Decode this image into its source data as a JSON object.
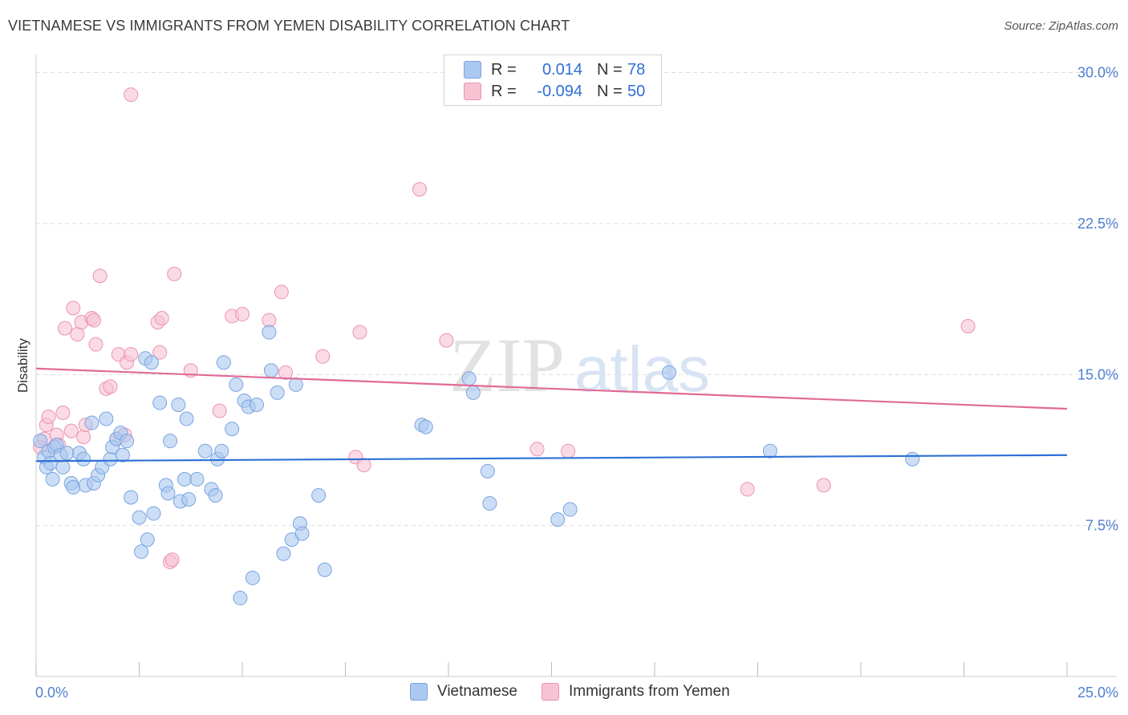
{
  "header": {
    "title": "VIETNAMESE VS IMMIGRANTS FROM YEMEN DISABILITY CORRELATION CHART",
    "source": "Source: ZipAtlas.com"
  },
  "legend": {
    "rows": [
      {
        "r_label": "R =",
        "r_value": "0.014",
        "n_label": "N =",
        "n_value": "78",
        "color": "#aac8f0",
        "border": "#7aa4e0"
      },
      {
        "r_label": "R =",
        "r_value": "-0.094",
        "n_label": "N =",
        "n_value": "50",
        "color": "#f7c3d3",
        "border": "#eb93b0"
      }
    ]
  },
  "bottom_legend": {
    "items": [
      {
        "label": "Vietnamese",
        "color": "#aac8f0",
        "border": "#7aa4e0"
      },
      {
        "label": "Immigrants from Yemen",
        "color": "#f7c3d3",
        "border": "#eb93b0"
      }
    ]
  },
  "watermark": {
    "zip": "ZIP",
    "atlas": "atlas"
  },
  "chart_data": {
    "type": "scatter",
    "title": "VIETNAMESE VS IMMIGRANTS FROM YEMEN DISABILITY CORRELATION CHART",
    "xlabel": "",
    "ylabel": "Disability",
    "xlim": [
      0,
      25
    ],
    "ylim": [
      0,
      30.5
    ],
    "x_tick_labels": [
      "0.0%",
      "25.0%"
    ],
    "y_ticks": [
      7.5,
      15.0,
      22.5,
      30.0
    ],
    "y_tick_labels": [
      "7.5%",
      "15.0%",
      "22.5%",
      "30.0%"
    ],
    "grid": true,
    "series": [
      {
        "name": "Vietnamese",
        "color": "#7aa4e0",
        "fill": "#aac8f0",
        "line_color": "#2e6fd6",
        "trend": {
          "x": [
            0,
            25
          ],
          "y": [
            10.7,
            11.0
          ]
        },
        "points": [
          [
            0.1,
            11.7
          ],
          [
            0.2,
            10.9
          ],
          [
            0.25,
            10.4
          ],
          [
            0.3,
            11.2
          ],
          [
            0.35,
            10.6
          ],
          [
            0.4,
            9.8
          ],
          [
            0.45,
            11.4
          ],
          [
            0.5,
            11.5
          ],
          [
            0.6,
            11.0
          ],
          [
            0.65,
            10.4
          ],
          [
            0.75,
            11.1
          ],
          [
            0.85,
            9.6
          ],
          [
            0.9,
            9.4
          ],
          [
            1.05,
            11.1
          ],
          [
            1.15,
            10.8
          ],
          [
            1.2,
            9.5
          ],
          [
            1.35,
            12.6
          ],
          [
            1.4,
            9.6
          ],
          [
            1.5,
            10.0
          ],
          [
            1.6,
            10.4
          ],
          [
            1.7,
            12.8
          ],
          [
            1.8,
            10.8
          ],
          [
            1.85,
            11.4
          ],
          [
            1.95,
            11.8
          ],
          [
            2.05,
            12.1
          ],
          [
            2.1,
            11.0
          ],
          [
            2.2,
            11.7
          ],
          [
            2.3,
            8.9
          ],
          [
            2.5,
            7.9
          ],
          [
            2.55,
            6.2
          ],
          [
            2.65,
            15.8
          ],
          [
            2.7,
            6.8
          ],
          [
            2.8,
            15.6
          ],
          [
            2.85,
            8.1
          ],
          [
            3.0,
            13.6
          ],
          [
            3.15,
            9.5
          ],
          [
            3.2,
            9.1
          ],
          [
            3.25,
            11.7
          ],
          [
            3.45,
            13.5
          ],
          [
            3.5,
            8.7
          ],
          [
            3.6,
            9.8
          ],
          [
            3.65,
            12.8
          ],
          [
            3.7,
            8.8
          ],
          [
            3.9,
            9.8
          ],
          [
            4.1,
            11.2
          ],
          [
            4.25,
            9.3
          ],
          [
            4.35,
            9.0
          ],
          [
            4.4,
            10.8
          ],
          [
            4.5,
            11.2
          ],
          [
            4.55,
            15.6
          ],
          [
            4.75,
            12.3
          ],
          [
            4.85,
            14.5
          ],
          [
            5.05,
            13.7
          ],
          [
            5.15,
            13.4
          ],
          [
            5.25,
            4.9
          ],
          [
            5.35,
            13.5
          ],
          [
            4.95,
            3.9
          ],
          [
            5.65,
            17.1
          ],
          [
            5.7,
            15.2
          ],
          [
            5.85,
            14.1
          ],
          [
            6.0,
            6.1
          ],
          [
            6.2,
            6.8
          ],
          [
            6.3,
            14.5
          ],
          [
            6.4,
            7.6
          ],
          [
            6.45,
            7.1
          ],
          [
            6.85,
            9.0
          ],
          [
            7.0,
            5.3
          ],
          [
            9.35,
            12.5
          ],
          [
            9.45,
            12.4
          ],
          [
            10.5,
            14.8
          ],
          [
            10.6,
            14.1
          ],
          [
            10.95,
            10.2
          ],
          [
            11.0,
            8.6
          ],
          [
            12.65,
            7.8
          ],
          [
            12.95,
            8.3
          ],
          [
            15.35,
            15.1
          ],
          [
            17.8,
            11.2
          ],
          [
            21.25,
            10.8
          ]
        ]
      },
      {
        "name": "Immigrants from Yemen",
        "color": "#eb93b0",
        "fill": "#f7c3d3",
        "line_color": "#e06b96",
        "trend": {
          "x": [
            0,
            25
          ],
          "y": [
            15.3,
            13.3
          ]
        },
        "points": [
          [
            0.1,
            11.4
          ],
          [
            0.2,
            11.8
          ],
          [
            0.25,
            12.5
          ],
          [
            0.3,
            12.9
          ],
          [
            0.5,
            12.0
          ],
          [
            0.55,
            11.5
          ],
          [
            0.65,
            13.1
          ],
          [
            0.7,
            17.3
          ],
          [
            0.85,
            12.2
          ],
          [
            0.9,
            18.3
          ],
          [
            1.0,
            17.0
          ],
          [
            1.1,
            17.6
          ],
          [
            1.15,
            11.9
          ],
          [
            1.2,
            12.5
          ],
          [
            1.35,
            17.8
          ],
          [
            1.4,
            17.7
          ],
          [
            1.45,
            16.5
          ],
          [
            1.55,
            19.9
          ],
          [
            1.7,
            14.3
          ],
          [
            1.8,
            14.4
          ],
          [
            1.95,
            11.8
          ],
          [
            2.0,
            16.0
          ],
          [
            2.15,
            12.0
          ],
          [
            2.2,
            15.6
          ],
          [
            2.3,
            16.0
          ],
          [
            2.3,
            28.9
          ],
          [
            2.95,
            17.6
          ],
          [
            3.0,
            16.1
          ],
          [
            3.05,
            17.8
          ],
          [
            3.25,
            5.7
          ],
          [
            3.3,
            5.8
          ],
          [
            3.35,
            20.0
          ],
          [
            3.75,
            15.2
          ],
          [
            4.45,
            13.2
          ],
          [
            4.75,
            17.9
          ],
          [
            5.0,
            18.0
          ],
          [
            5.65,
            17.7
          ],
          [
            5.95,
            19.1
          ],
          [
            6.05,
            15.1
          ],
          [
            6.95,
            15.9
          ],
          [
            7.75,
            10.9
          ],
          [
            7.85,
            17.1
          ],
          [
            7.95,
            10.5
          ],
          [
            9.3,
            24.2
          ],
          [
            9.95,
            16.7
          ],
          [
            12.15,
            11.3
          ],
          [
            12.9,
            11.2
          ],
          [
            17.25,
            9.3
          ],
          [
            19.1,
            9.5
          ],
          [
            22.6,
            17.4
          ]
        ]
      }
    ]
  }
}
